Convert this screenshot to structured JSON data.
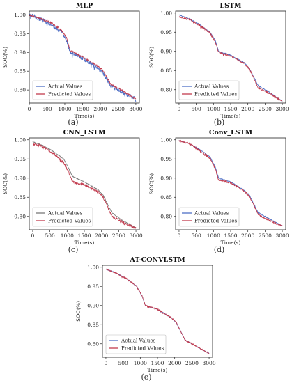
{
  "chart_data": [
    {
      "type": "line",
      "title": "MLP",
      "caption": "(a)",
      "xlabel": "Time(s)",
      "ylabel": "SOC(%)",
      "xlim": [
        0,
        3100
      ],
      "ylim": [
        0.765,
        1.01
      ],
      "xticks": [
        0,
        500,
        1000,
        1500,
        2000,
        2500,
        3000
      ],
      "yticks": [
        0.8,
        0.85,
        0.9,
        0.95,
        1.0
      ],
      "legend": "lower-left",
      "grid": false,
      "series": [
        {
          "name": "Actual Values",
          "color": "#4f6fc5",
          "noise": 0.005,
          "x": [
            0,
            300,
            600,
            900,
            1050,
            1150,
            1500,
            1900,
            2050,
            2300,
            2600,
            3000
          ],
          "y": [
            1.0,
            0.99,
            0.975,
            0.955,
            0.93,
            0.9,
            0.885,
            0.86,
            0.85,
            0.81,
            0.795,
            0.775
          ]
        },
        {
          "name": "Predicted Values",
          "color": "#c23b4e",
          "noise": 0.002,
          "x": [
            0,
            300,
            600,
            900,
            1050,
            1150,
            1500,
            1900,
            2050,
            2300,
            2600,
            3000
          ],
          "y": [
            1.0,
            0.99,
            0.98,
            0.96,
            0.94,
            0.905,
            0.888,
            0.865,
            0.855,
            0.815,
            0.8,
            0.775
          ]
        }
      ]
    },
    {
      "type": "line",
      "title": "LSTM",
      "caption": "(b)",
      "xlabel": "Time(s)",
      "ylabel": "SOC(%)",
      "xlim": [
        -100,
        3100
      ],
      "ylim": [
        0.765,
        1.005
      ],
      "xticks": [
        0,
        500,
        1000,
        1500,
        2000,
        2500,
        3000
      ],
      "yticks": [
        0.8,
        0.85,
        0.9,
        0.95,
        1.0
      ],
      "legend": "lower-left",
      "grid": false,
      "series": [
        {
          "name": "Actual Values",
          "color": "#4f6fc5",
          "noise": 0.001,
          "x": [
            0,
            300,
            600,
            900,
            1050,
            1150,
            1500,
            1900,
            2050,
            2300,
            2600,
            3000
          ],
          "y": [
            0.995,
            0.985,
            0.97,
            0.95,
            0.93,
            0.9,
            0.89,
            0.87,
            0.855,
            0.81,
            0.795,
            0.77
          ]
        },
        {
          "name": "Predicted Values",
          "color": "#c23b4e",
          "noise": 0.002,
          "x": [
            0,
            300,
            600,
            900,
            1050,
            1150,
            1500,
            1900,
            2050,
            2300,
            2600,
            3000
          ],
          "y": [
            0.99,
            0.983,
            0.968,
            0.948,
            0.925,
            0.898,
            0.888,
            0.868,
            0.853,
            0.805,
            0.792,
            0.77
          ]
        }
      ]
    },
    {
      "type": "line",
      "title": "CNN_LSTM",
      "caption": "(c)",
      "xlabel": "Time(s)",
      "ylabel": "SOC(%)",
      "xlim": [
        -100,
        3100
      ],
      "ylim": [
        0.765,
        1.005
      ],
      "xticks": [
        0,
        500,
        1000,
        1500,
        2000,
        2500,
        3000
      ],
      "yticks": [
        0.8,
        0.85,
        0.9,
        0.95,
        1.0
      ],
      "legend": "lower-left",
      "grid": false,
      "series": [
        {
          "name": "Actual Values",
          "color": "#7a7a7a",
          "noise": 0.0008,
          "x": [
            0,
            300,
            600,
            900,
            1050,
            1150,
            1500,
            1900,
            2050,
            2300,
            2600,
            3000
          ],
          "y": [
            0.995,
            0.985,
            0.97,
            0.95,
            0.925,
            0.905,
            0.89,
            0.87,
            0.855,
            0.81,
            0.79,
            0.77
          ]
        },
        {
          "name": "Predicted Values",
          "color": "#c23b4e",
          "noise": 0.003,
          "x": [
            0,
            300,
            600,
            900,
            1050,
            1150,
            1500,
            1900,
            2050,
            2300,
            2600,
            3000
          ],
          "y": [
            0.99,
            0.982,
            0.965,
            0.94,
            0.915,
            0.89,
            0.882,
            0.865,
            0.85,
            0.8,
            0.785,
            0.77
          ]
        }
      ]
    },
    {
      "type": "line",
      "title": "Conv_LSTM",
      "caption": "(d)",
      "xlabel": "Time(s)",
      "ylabel": "SOC(%)",
      "xlim": [
        -100,
        3100
      ],
      "ylim": [
        0.765,
        1.005
      ],
      "xticks": [
        0,
        500,
        1000,
        1500,
        2000,
        2500,
        3000
      ],
      "yticks": [
        0.8,
        0.85,
        0.9,
        0.95,
        1.0
      ],
      "legend": "lower-left",
      "grid": false,
      "series": [
        {
          "name": "Actual Values",
          "color": "#4f6fc5",
          "noise": 0.001,
          "x": [
            0,
            300,
            600,
            900,
            1050,
            1150,
            1500,
            1900,
            2050,
            2300,
            2600,
            3000
          ],
          "y": [
            0.998,
            0.99,
            0.975,
            0.955,
            0.93,
            0.9,
            0.89,
            0.868,
            0.855,
            0.81,
            0.795,
            0.775
          ]
        },
        {
          "name": "Predicted Values",
          "color": "#c23b4e",
          "noise": 0.002,
          "x": [
            0,
            300,
            600,
            900,
            1050,
            1150,
            1500,
            1900,
            2050,
            2300,
            2600,
            3000
          ],
          "y": [
            0.998,
            0.99,
            0.972,
            0.952,
            0.925,
            0.895,
            0.888,
            0.866,
            0.852,
            0.805,
            0.79,
            0.775
          ]
        }
      ]
    },
    {
      "type": "line",
      "title": "AT-CONVLSTM",
      "caption": "(e)",
      "xlabel": "Time(s)",
      "ylabel": "SOC(%)",
      "xlim": [
        -100,
        3100
      ],
      "ylim": [
        0.765,
        1.005
      ],
      "xticks": [
        0,
        500,
        1000,
        1500,
        2000,
        2500,
        3000
      ],
      "yticks": [
        0.8,
        0.85,
        0.9,
        0.95,
        1.0
      ],
      "legend": "lower-left",
      "grid": false,
      "series": [
        {
          "name": "Actual Values",
          "color": "#4f6fc5",
          "noise": 0.0008,
          "x": [
            0,
            300,
            600,
            900,
            1050,
            1150,
            1500,
            1900,
            2050,
            2300,
            2600,
            3000
          ],
          "y": [
            0.995,
            0.985,
            0.97,
            0.95,
            0.925,
            0.9,
            0.89,
            0.868,
            0.855,
            0.81,
            0.795,
            0.775
          ]
        },
        {
          "name": "Predicted Values",
          "color": "#c23b4e",
          "noise": 0.0015,
          "x": [
            0,
            300,
            600,
            900,
            1050,
            1150,
            1500,
            1900,
            2050,
            2300,
            2600,
            3000
          ],
          "y": [
            0.995,
            0.985,
            0.97,
            0.95,
            0.925,
            0.9,
            0.89,
            0.868,
            0.855,
            0.81,
            0.795,
            0.775
          ]
        }
      ]
    }
  ]
}
